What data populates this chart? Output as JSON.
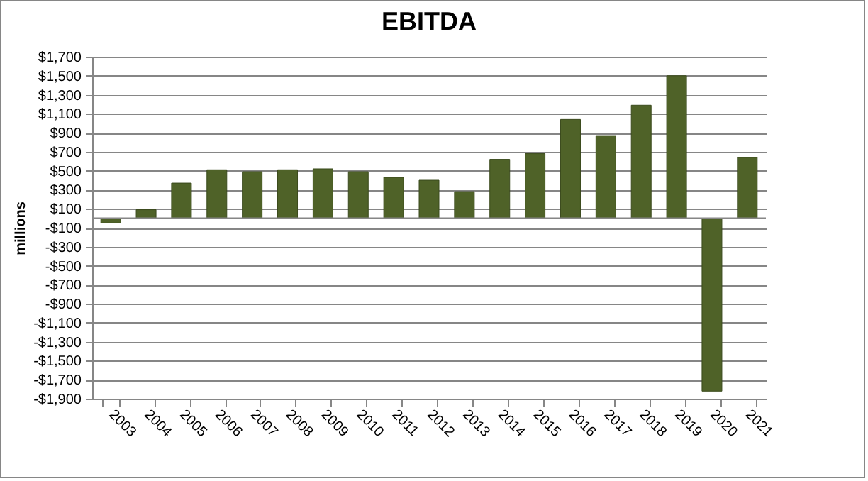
{
  "chart_data": {
    "type": "bar",
    "title": "EBITDA",
    "ylabel": "millions",
    "categories": [
      "2003",
      "2004",
      "2005",
      "2006",
      "2007",
      "2008",
      "2009",
      "2010",
      "2011",
      "2012",
      "2013",
      "2014",
      "2015",
      "2016",
      "2017",
      "2018",
      "2019",
      "2020",
      "2021"
    ],
    "values": [
      -50,
      90,
      370,
      510,
      490,
      510,
      520,
      490,
      430,
      400,
      280,
      620,
      680,
      1040,
      870,
      1190,
      1500,
      -1820,
      640
    ],
    "color": "#4f6228",
    "ylim": [
      -1900,
      1700
    ],
    "yticks": [
      {
        "value": -1900,
        "label": "-$1,900"
      },
      {
        "value": -1700,
        "label": "-$1,700"
      },
      {
        "value": -1500,
        "label": "-$1,500"
      },
      {
        "value": -1300,
        "label": "-$1,300"
      },
      {
        "value": -1100,
        "label": "-$1,100"
      },
      {
        "value": -900,
        "label": "-$900"
      },
      {
        "value": -700,
        "label": "-$700"
      },
      {
        "value": -500,
        "label": "-$500"
      },
      {
        "value": -300,
        "label": "-$300"
      },
      {
        "value": -100,
        "label": "-$100"
      },
      {
        "value": 100,
        "label": "$100"
      },
      {
        "value": 300,
        "label": "$300"
      },
      {
        "value": 500,
        "label": "$500"
      },
      {
        "value": 700,
        "label": "$700"
      },
      {
        "value": 900,
        "label": "$900"
      },
      {
        "value": 1100,
        "label": "$1,100"
      },
      {
        "value": 1300,
        "label": "$1,300"
      },
      {
        "value": 1500,
        "label": "$1,500"
      },
      {
        "value": 1700,
        "label": "$1,700"
      }
    ],
    "grid": "y"
  }
}
